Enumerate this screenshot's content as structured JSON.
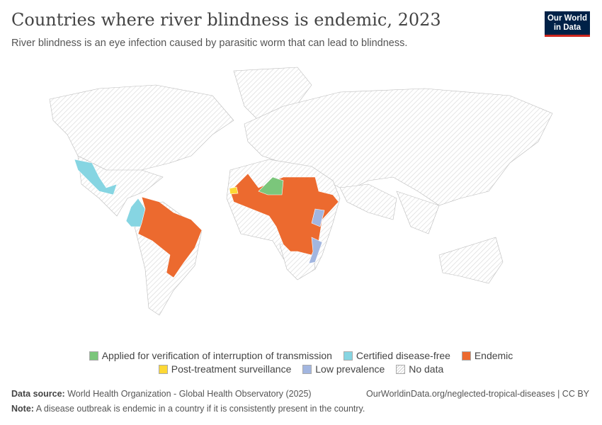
{
  "header": {
    "title": "Countries where river blindness is endemic, 2023",
    "subtitle": "River blindness is an eye infection caused by parasitic worm that can lead to blindness.",
    "logo": "Our World in Data"
  },
  "legend": {
    "items": [
      {
        "label": "Applied for verification of interruption of transmission",
        "color": "#7bc67b"
      },
      {
        "label": "Certified disease-free",
        "color": "#86d5e2"
      },
      {
        "label": "Endemic",
        "color": "#ec6a2f"
      },
      {
        "label": "Post-treatment surveillance",
        "color": "#fdd835"
      },
      {
        "label": "Low prevalence",
        "color": "#a2b6e0"
      },
      {
        "label": "No data",
        "color": "hatched"
      }
    ]
  },
  "footer": {
    "source_label": "Data source:",
    "source": "World Health Organization - Global Health Observatory (2025)",
    "url": "OurWorldinData.org/neglected-tropical-diseases | CC BY",
    "note_label": "Note:",
    "note": "A disease outbreak is endemic in a country if it is consistently present in the country."
  }
}
